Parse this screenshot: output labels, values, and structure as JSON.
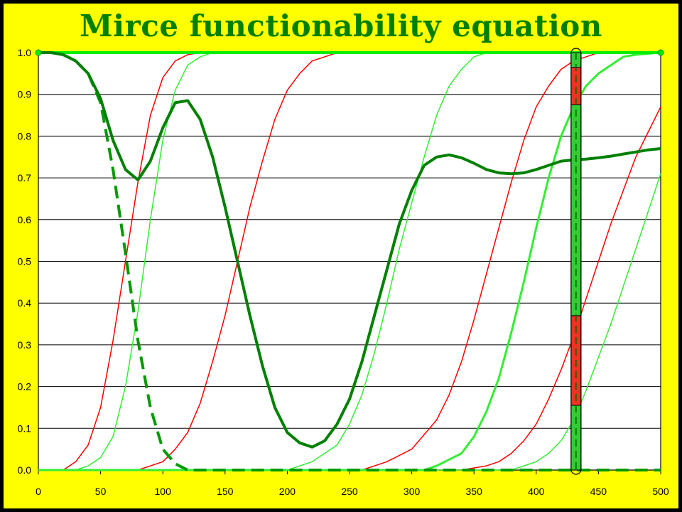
{
  "chart_data": {
    "type": "line",
    "title": "Mirce functionability equation",
    "xlim": [
      0,
      500
    ],
    "ylim": [
      0,
      1
    ],
    "xticks": [
      "0",
      "50",
      "100",
      "150",
      "200",
      "250",
      "300",
      "350",
      "400",
      "450",
      "500"
    ],
    "yticks": [
      "0.0",
      "0.1",
      "0.2",
      "0.3",
      "0.4",
      "0.5",
      "0.6",
      "0.7",
      "0.8",
      "0.9",
      "1.0"
    ],
    "grid": true,
    "plot_background": "#ffffff",
    "background": "#ffff00",
    "series": [
      {
        "color": "#00ee00",
        "style": "solid",
        "width": 4,
        "x": [
          0,
          500
        ],
        "y": [
          1.0,
          1.0
        ]
      },
      {
        "color": "#ff0000",
        "style": "solid",
        "width": 1.5,
        "x": [
          0,
          20,
          30,
          40,
          50,
          60,
          70,
          80,
          90,
          100,
          110,
          120,
          130,
          140,
          500
        ],
        "y": [
          0.0,
          0.0,
          0.02,
          0.06,
          0.15,
          0.31,
          0.5,
          0.69,
          0.85,
          0.94,
          0.98,
          0.995,
          1.0,
          1.0,
          1.0
        ]
      },
      {
        "color": "#33ee33",
        "style": "solid",
        "width": 1.5,
        "x": [
          0,
          30,
          40,
          50,
          60,
          70,
          80,
          90,
          100,
          110,
          120,
          130,
          140,
          150,
          160,
          500
        ],
        "y": [
          0.0,
          0.0,
          0.01,
          0.03,
          0.08,
          0.2,
          0.38,
          0.6,
          0.79,
          0.91,
          0.97,
          0.99,
          1.0,
          1.0,
          1.0,
          1.0
        ]
      },
      {
        "color": "#ff0000",
        "style": "solid",
        "width": 1.5,
        "x": [
          0,
          80,
          100,
          110,
          120,
          130,
          140,
          150,
          160,
          170,
          180,
          190,
          200,
          210,
          220,
          230,
          240,
          250,
          260,
          500
        ],
        "y": [
          0.0,
          0.0,
          0.02,
          0.05,
          0.09,
          0.16,
          0.26,
          0.37,
          0.5,
          0.63,
          0.74,
          0.84,
          0.91,
          0.95,
          0.98,
          0.99,
          1.0,
          1.0,
          1.0,
          1.0
        ]
      },
      {
        "color": "#33ee33",
        "style": "solid",
        "width": 1.5,
        "x": [
          0,
          200,
          220,
          240,
          250,
          260,
          270,
          280,
          290,
          300,
          310,
          320,
          330,
          340,
          350,
          360,
          370,
          380,
          400,
          500
        ],
        "y": [
          0.0,
          0.0,
          0.02,
          0.06,
          0.11,
          0.18,
          0.28,
          0.4,
          0.53,
          0.64,
          0.75,
          0.85,
          0.92,
          0.96,
          0.99,
          1.0,
          1.0,
          1.0,
          1.0,
          1.0
        ]
      },
      {
        "color": "#ff0000",
        "style": "solid",
        "width": 1.5,
        "x": [
          0,
          260,
          280,
          300,
          320,
          330,
          340,
          350,
          360,
          370,
          380,
          390,
          400,
          410,
          420,
          430,
          440,
          450,
          460,
          500
        ],
        "y": [
          0.0,
          0.0,
          0.02,
          0.05,
          0.12,
          0.18,
          0.26,
          0.36,
          0.47,
          0.58,
          0.69,
          0.79,
          0.87,
          0.92,
          0.96,
          0.98,
          0.99,
          1.0,
          1.0,
          1.0
        ]
      },
      {
        "color": "#33ee33",
        "style": "solid",
        "width": 3,
        "x": [
          0,
          310,
          320,
          340,
          350,
          360,
          370,
          380,
          390,
          400,
          410,
          420,
          430,
          440,
          450,
          460,
          470,
          480,
          500
        ],
        "y": [
          0.0,
          0.0,
          0.01,
          0.04,
          0.08,
          0.14,
          0.22,
          0.33,
          0.45,
          0.58,
          0.7,
          0.8,
          0.87,
          0.92,
          0.95,
          0.97,
          0.99,
          0.995,
          1.0
        ]
      },
      {
        "color": "#ff0000",
        "style": "solid",
        "width": 1.5,
        "x": [
          0,
          340,
          360,
          370,
          380,
          390,
          400,
          410,
          420,
          430,
          440,
          450,
          460,
          470,
          480,
          490,
          500
        ],
        "y": [
          0.0,
          0.0,
          0.01,
          0.02,
          0.04,
          0.07,
          0.11,
          0.17,
          0.24,
          0.32,
          0.41,
          0.5,
          0.59,
          0.67,
          0.75,
          0.81,
          0.87
        ]
      },
      {
        "color": "#33ee33",
        "style": "solid",
        "width": 1.5,
        "x": [
          0,
          380,
          400,
          410,
          420,
          430,
          440,
          450,
          460,
          470,
          480,
          490,
          500
        ],
        "y": [
          0.0,
          0.0,
          0.02,
          0.04,
          0.07,
          0.12,
          0.19,
          0.27,
          0.35,
          0.44,
          0.53,
          0.62,
          0.71
        ]
      },
      {
        "color": "#009900",
        "style": "dashed",
        "width": 4,
        "x": [
          0,
          10,
          20,
          30,
          40,
          50,
          60,
          70,
          80,
          90,
          100,
          110,
          120,
          130,
          500
        ],
        "y": [
          1.0,
          1.0,
          0.995,
          0.98,
          0.95,
          0.88,
          0.72,
          0.52,
          0.31,
          0.15,
          0.05,
          0.015,
          0.0,
          0.0,
          0.0
        ]
      },
      {
        "color": "#008000",
        "style": "solid",
        "width": 4,
        "x": [
          0,
          10,
          20,
          30,
          40,
          50,
          60,
          70,
          80,
          90,
          100,
          110,
          120,
          130,
          140,
          150,
          160,
          170,
          180,
          190,
          200,
          210,
          220,
          230,
          240,
          250,
          260,
          270,
          280,
          290,
          300,
          310,
          320,
          330,
          340,
          350,
          360,
          370,
          380,
          390,
          400,
          410,
          420,
          430,
          440,
          450,
          460,
          470,
          480,
          490,
          500
        ],
        "y": [
          1.0,
          1.0,
          0.995,
          0.98,
          0.95,
          0.89,
          0.79,
          0.72,
          0.695,
          0.74,
          0.82,
          0.88,
          0.885,
          0.84,
          0.75,
          0.63,
          0.5,
          0.37,
          0.25,
          0.15,
          0.09,
          0.065,
          0.055,
          0.07,
          0.11,
          0.17,
          0.26,
          0.37,
          0.48,
          0.59,
          0.67,
          0.73,
          0.75,
          0.755,
          0.748,
          0.735,
          0.72,
          0.712,
          0.71,
          0.712,
          0.72,
          0.73,
          0.74,
          0.743,
          0.745,
          0.748,
          0.752,
          0.757,
          0.762,
          0.767,
          0.77
        ]
      }
    ],
    "marker_bar": {
      "x": 432,
      "segments": [
        {
          "from": 0.0,
          "to": 0.155,
          "color": "#33cc33"
        },
        {
          "from": 0.155,
          "to": 0.37,
          "color": "#ee3322"
        },
        {
          "from": 0.37,
          "to": 0.875,
          "color": "#33cc33"
        },
        {
          "from": 0.875,
          "to": 0.965,
          "color": "#ee3322"
        },
        {
          "from": 0.965,
          "to": 1.0,
          "color": "#33cc33"
        }
      ]
    }
  }
}
